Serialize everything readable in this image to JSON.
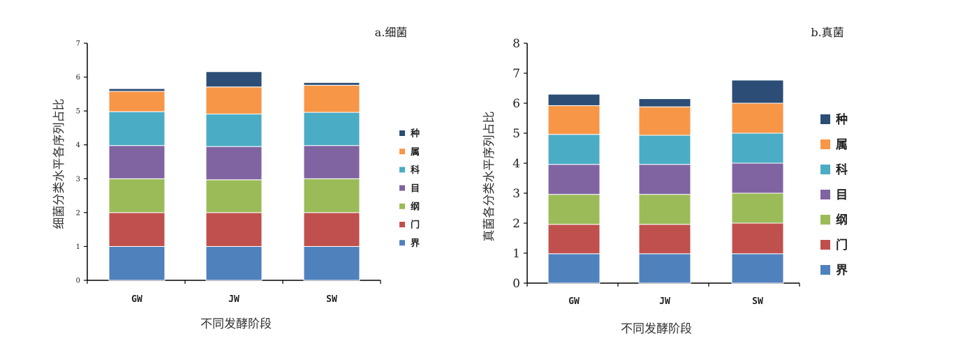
{
  "chart_data": [
    {
      "type": "bar",
      "stacked": true,
      "title": "a.细菌",
      "xlabel": "不同发酵阶段",
      "ylabel": "细菌分类水平各序列占比",
      "categories": [
        "GW",
        "JW",
        "SW"
      ],
      "ylim": [
        0,
        7
      ],
      "yticks": [
        "0",
        "1",
        "2",
        "3",
        "4",
        "5",
        "6",
        "7"
      ],
      "legend_position": "right",
      "series": [
        {
          "name": "界",
          "color": "#4F81BD",
          "values": [
            1.0,
            1.0,
            1.0
          ]
        },
        {
          "name": "门",
          "color": "#C0504D",
          "values": [
            1.0,
            1.0,
            1.0
          ]
        },
        {
          "name": "纲",
          "color": "#9BBB59",
          "values": [
            1.0,
            0.97,
            1.0
          ]
        },
        {
          "name": "目",
          "color": "#8064A2",
          "values": [
            0.98,
            0.98,
            0.98
          ]
        },
        {
          "name": "科",
          "color": "#4BACC6",
          "values": [
            1.0,
            0.96,
            0.98
          ]
        },
        {
          "name": "属",
          "color": "#F79646",
          "values": [
            0.6,
            0.8,
            0.8
          ]
        },
        {
          "name": "种",
          "color": "#2C4D75",
          "values": [
            0.08,
            0.45,
            0.08
          ]
        }
      ]
    },
    {
      "type": "bar",
      "stacked": true,
      "title": "b.真菌",
      "xlabel": "不同发酵阶段",
      "ylabel": "真菌各分类水平序列占比",
      "categories": [
        "GW",
        "JW",
        "SW"
      ],
      "ylim": [
        0,
        8
      ],
      "yticks": [
        "0",
        "1",
        "2",
        "3",
        "4",
        "5",
        "6",
        "7",
        "8"
      ],
      "legend_position": "right",
      "series": [
        {
          "name": "界",
          "color": "#4F81BD",
          "values": [
            0.98,
            0.98,
            0.98
          ]
        },
        {
          "name": "门",
          "color": "#C0504D",
          "values": [
            0.98,
            0.98,
            1.02
          ]
        },
        {
          "name": "纲",
          "color": "#9BBB59",
          "values": [
            1.0,
            1.0,
            1.0
          ]
        },
        {
          "name": "目",
          "color": "#8064A2",
          "values": [
            1.0,
            1.0,
            1.0
          ]
        },
        {
          "name": "科",
          "color": "#4BACC6",
          "values": [
            1.0,
            0.97,
            1.0
          ]
        },
        {
          "name": "属",
          "color": "#F79646",
          "values": [
            0.96,
            0.95,
            1.0
          ]
        },
        {
          "name": "种",
          "color": "#2C4D75",
          "values": [
            0.38,
            0.27,
            0.77
          ]
        }
      ]
    }
  ]
}
